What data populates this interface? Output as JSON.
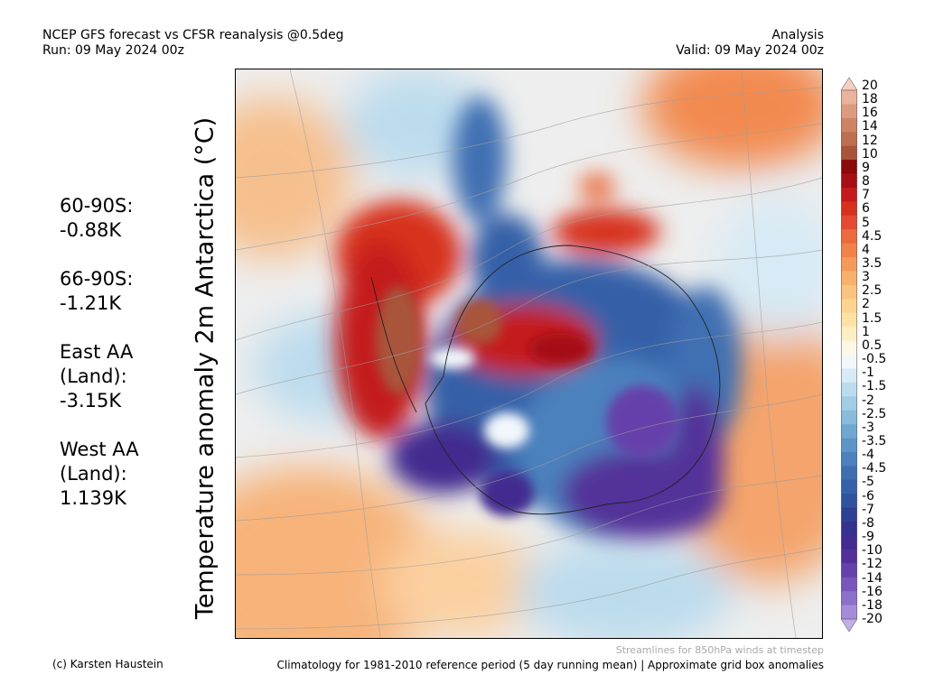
{
  "header": {
    "title_line1": "NCEP GFS forecast vs CFSR reanalysis @0.5deg",
    "title_line2": "Run: 09 May 2024 00z",
    "right_line1": "Analysis",
    "right_line2": "Valid: 09 May 2024 00z"
  },
  "y_axis_label": "Temperature anomaly 2m Antarctica (°C)",
  "stats": [
    {
      "lines": [
        "60-90S:",
        " -0.88K"
      ]
    },
    {
      "lines": [
        "66-90S:",
        " -1.21K"
      ]
    },
    {
      "lines": [
        "East AA",
        " (Land):",
        " -3.15K"
      ]
    },
    {
      "lines": [
        "West AA",
        " (Land):",
        " 1.139K"
      ]
    }
  ],
  "colorbar": {
    "labels": [
      "20",
      "18",
      "16",
      "14",
      "12",
      "10",
      "9",
      "8",
      "7",
      "6",
      "5",
      "4.5",
      "4",
      "3.5",
      "3",
      "2.5",
      "2",
      "1.5",
      "1",
      "0.5",
      "-0.5",
      "-1",
      "-1.5",
      "-2",
      "-2.5",
      "-3",
      "-3.5",
      "-4",
      "-4.5",
      "-5",
      "-6",
      "-7",
      "-8",
      "-9",
      "-10",
      "-12",
      "-14",
      "-16",
      "-18",
      "-20"
    ],
    "colors": [
      "#f7cfc0",
      "#e9b39d",
      "#dc9b80",
      "#cd8465",
      "#bd6e50",
      "#a8543a",
      "#8b0a0a",
      "#a50f15",
      "#c41a1c",
      "#d7301f",
      "#e34a33",
      "#ec6a3d",
      "#f1824a",
      "#f59a5a",
      "#f8b06c",
      "#fac37f",
      "#fcd490",
      "#fde2a6",
      "#fdefc4",
      "#fdf8e6",
      "#f2f7fb",
      "#d7eaf5",
      "#bcdcee",
      "#a2cce5",
      "#89bbdc",
      "#71a8d2",
      "#5d95c8",
      "#4c81bd",
      "#3f6fb2",
      "#3661a8",
      "#31529e",
      "#2f4094",
      "#35318f",
      "#422c8f",
      "#53309a",
      "#6641aa",
      "#7856bb",
      "#8c6fcb",
      "#a48cdb",
      "#c0aee9"
    ]
  },
  "footer": {
    "credit": "(c) Karsten Haustein",
    "streamlines_note": "Streamlines for 850hPa winds at timestep",
    "climatology_note": "Climatology for 1981-2010 reference period (5 day running mean) | Approximate grid box anomalies"
  },
  "map": {
    "palette": {
      "ocean_neutral": "#eeeeee",
      "warm_light": "#fbd0a0",
      "warm_mid": "#f4a36a",
      "warm_strong": "#d7301f",
      "warm_extreme": "#a8543a",
      "cool_light": "#bcdcee",
      "cool_mid": "#5d95c8",
      "cool_strong": "#3661a8",
      "cold_extreme": "#53309a",
      "streamline": "#9e9e9e"
    }
  }
}
